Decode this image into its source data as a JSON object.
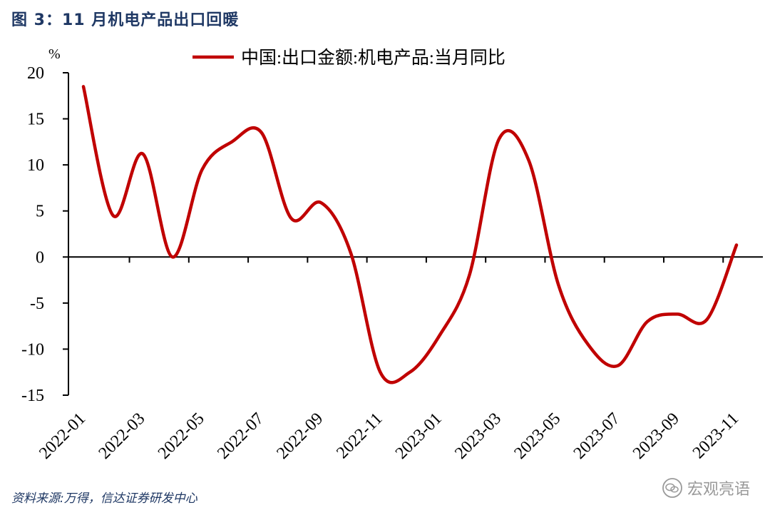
{
  "figure_title": "图 3：11 月机电产品出口回暖",
  "source": "资料来源:万得，信达证券研发中心",
  "watermark": "宏观亮语",
  "colors": {
    "line": "#c00000",
    "title": "#1f3864",
    "axis": "#000000"
  },
  "chart_data": {
    "type": "line",
    "title": "",
    "xlabel": "",
    "ylabel": "%",
    "ylim": [
      -15,
      20
    ],
    "yticks": [
      20,
      15,
      10,
      5,
      0,
      -5,
      -10,
      -15
    ],
    "x": [
      "2022-01",
      "2022-02",
      "2022-03",
      "2022-04",
      "2022-05",
      "2022-06",
      "2022-07",
      "2022-08",
      "2022-09",
      "2022-10",
      "2022-11",
      "2022-12",
      "2023-01",
      "2023-02",
      "2023-03",
      "2023-04",
      "2023-05",
      "2023-06",
      "2023-07",
      "2023-08",
      "2023-09",
      "2023-10",
      "2023-11"
    ],
    "xtick_labels": [
      "2022-01",
      "2022-03",
      "2022-05",
      "2022-07",
      "2022-09",
      "2022-11",
      "2023-01",
      "2023-03",
      "2023-05",
      "2023-07",
      "2023-09",
      "2023-11"
    ],
    "legend_position": "top",
    "series": [
      {
        "name": "中国:出口金额:机电产品:当月同比",
        "values": [
          18.5,
          4.5,
          11.2,
          0.0,
          9.5,
          12.5,
          13.5,
          4.2,
          5.9,
          0.5,
          -12.5,
          -12.5,
          -8.5,
          -2.0,
          12.8,
          10.5,
          -3.0,
          -9.5,
          -11.8,
          -7.0,
          -6.2,
          -6.8,
          1.3
        ]
      }
    ]
  }
}
